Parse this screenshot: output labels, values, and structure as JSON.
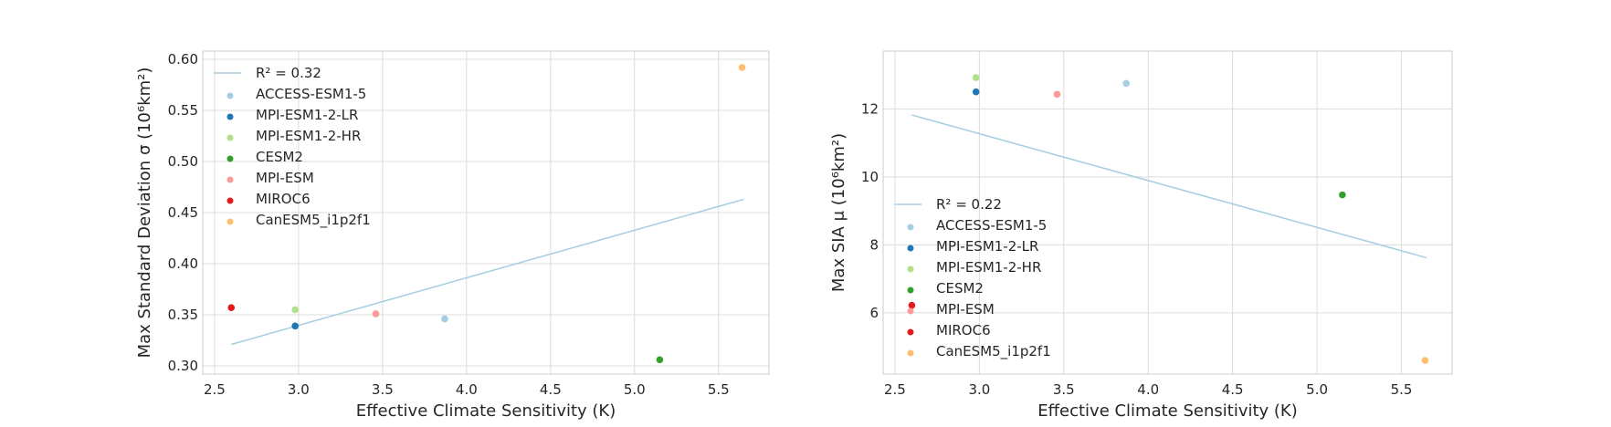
{
  "chart_data": [
    {
      "type": "scatter",
      "xlabel": "Effective Climate Sensitivity (K)",
      "ylabel": "Max Standard Deviation σ (10⁶km²)",
      "xlim": [
        2.43,
        5.8
      ],
      "ylim": [
        0.292,
        0.608
      ],
      "xticks": [
        "2.5",
        "3.0",
        "3.5",
        "4.0",
        "4.5",
        "5.0",
        "5.5"
      ],
      "yticks": [
        "0.30",
        "0.35",
        "0.40",
        "0.45",
        "0.50",
        "0.55",
        "0.60"
      ],
      "grid": true,
      "legend_position": "upper-left",
      "fit": {
        "label": "R² = 0.32",
        "x": [
          2.6,
          5.65
        ],
        "y": [
          0.321,
          0.463
        ],
        "color": "#a6cee3"
      },
      "series": [
        {
          "name": "ACCESS-ESM1-5",
          "color": "#a6cee3",
          "x": 3.87,
          "y": 0.346
        },
        {
          "name": "MPI-ESM1-2-LR",
          "color": "#1f78b4",
          "x": 2.98,
          "y": 0.339
        },
        {
          "name": "MPI-ESM1-2-HR",
          "color": "#b2df8a",
          "x": 2.98,
          "y": 0.355
        },
        {
          "name": "CESM2",
          "color": "#33a02c",
          "x": 5.15,
          "y": 0.306
        },
        {
          "name": "MPI-ESM",
          "color": "#fb9a99",
          "x": 3.46,
          "y": 0.351
        },
        {
          "name": "MIROC6",
          "color": "#e31a1c",
          "x": 2.6,
          "y": 0.357
        },
        {
          "name": "CanESM5_i1p2f1",
          "color": "#fdbf6f",
          "x": 5.64,
          "y": 0.592
        }
      ]
    },
    {
      "type": "scatter",
      "xlabel": "Effective Climate Sensitivity (K)",
      "ylabel": "Max SIA μ (10⁶km²)",
      "xlim": [
        2.43,
        5.8
      ],
      "ylim": [
        4.2,
        13.7
      ],
      "xticks": [
        "2.5",
        "3.0",
        "3.5",
        "4.0",
        "4.5",
        "5.0",
        "5.5"
      ],
      "yticks": [
        "6",
        "8",
        "10",
        "12"
      ],
      "grid": true,
      "legend_position": "lower-left",
      "fit": {
        "label": "R² = 0.22",
        "x": [
          2.6,
          5.65
        ],
        "y": [
          11.82,
          7.62
        ],
        "color": "#a6cee3"
      },
      "series": [
        {
          "name": "ACCESS-ESM1-5",
          "color": "#a6cee3",
          "x": 3.87,
          "y": 12.75
        },
        {
          "name": "MPI-ESM1-2-LR",
          "color": "#1f78b4",
          "x": 2.98,
          "y": 12.5
        },
        {
          "name": "MPI-ESM1-2-HR",
          "color": "#b2df8a",
          "x": 2.98,
          "y": 12.92
        },
        {
          "name": "CESM2",
          "color": "#33a02c",
          "x": 5.15,
          "y": 9.47
        },
        {
          "name": "MPI-ESM",
          "color": "#fb9a99",
          "x": 3.46,
          "y": 12.43
        },
        {
          "name": "MIROC6",
          "color": "#e31a1c",
          "x": 2.6,
          "y": 6.22
        },
        {
          "name": "CanESM5_i1p2f1",
          "color": "#fdbf6f",
          "x": 5.64,
          "y": 4.6
        }
      ]
    }
  ]
}
